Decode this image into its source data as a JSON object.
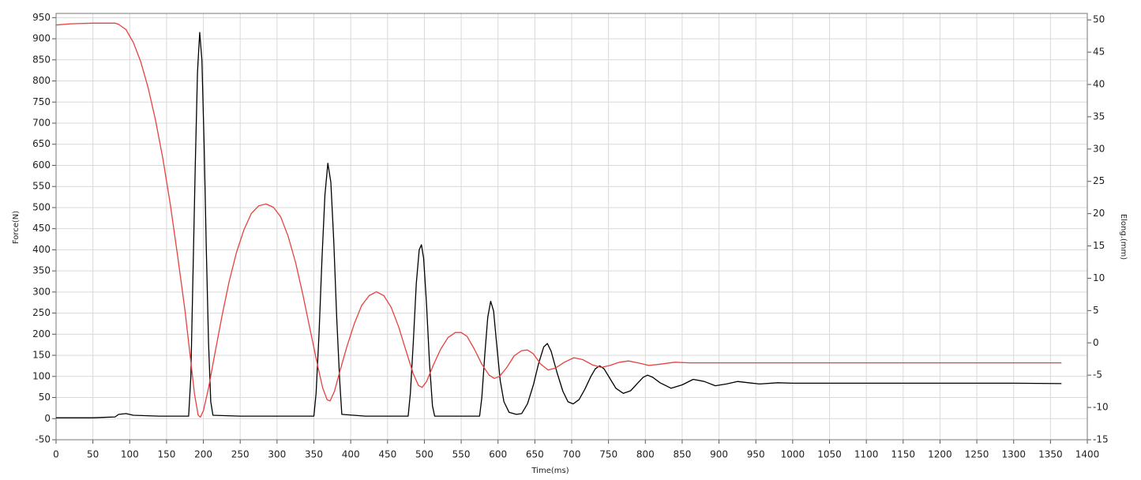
{
  "chart_data": {
    "type": "line",
    "xlabel": "Time(ms)",
    "ylabel": "Force(N)",
    "y2label": "Elong.(mm)",
    "xlim": [
      0,
      1400
    ],
    "xticks": [
      0,
      50,
      100,
      150,
      200,
      250,
      300,
      350,
      400,
      450,
      500,
      550,
      600,
      650,
      700,
      750,
      800,
      850,
      900,
      950,
      1000,
      1050,
      1100,
      1150,
      1200,
      1250,
      1300,
      1350,
      1400
    ],
    "ylim": [
      -50,
      960
    ],
    "yticks": [
      -50,
      0,
      50,
      100,
      150,
      200,
      250,
      300,
      350,
      400,
      450,
      500,
      550,
      600,
      650,
      700,
      750,
      800,
      850,
      900,
      950
    ],
    "y2lim": [
      -15,
      51
    ],
    "y2ticks": [
      -15,
      -10,
      -5,
      0,
      5,
      10,
      15,
      20,
      25,
      30,
      35,
      40,
      45,
      50
    ],
    "grid": true,
    "series": [
      {
        "color": "#000000",
        "axis": "y",
        "x": [
          0,
          50,
          80,
          85,
          95,
          105,
          140,
          180,
          183,
          186,
          189,
          192,
          195,
          198,
          201,
          204,
          207,
          210,
          213,
          250,
          300,
          350,
          353,
          357,
          361,
          365,
          369,
          373,
          377,
          381,
          385,
          388,
          420,
          478,
          481,
          485,
          489,
          493,
          496,
          499,
          503,
          507,
          511,
          514,
          575,
          578,
          582,
          586,
          590,
          594,
          598,
          603,
          608,
          615,
          625,
          632,
          640,
          648,
          655,
          662,
          667,
          672,
          680,
          688,
          695,
          702,
          710,
          718,
          726,
          732,
          738,
          744,
          752,
          760,
          770,
          780,
          790,
          797,
          803,
          810,
          820,
          835,
          850,
          865,
          880,
          895,
          910,
          925,
          940,
          955,
          980,
          1000,
          1100,
          1200,
          1300,
          1365
        ],
        "values": [
          2,
          2,
          4,
          10,
          12,
          8,
          6,
          6,
          100,
          350,
          600,
          820,
          915,
          850,
          650,
          400,
          180,
          40,
          8,
          6,
          6,
          6,
          60,
          200,
          380,
          530,
          605,
          560,
          420,
          240,
          90,
          10,
          6,
          6,
          60,
          180,
          320,
          400,
          412,
          380,
          270,
          130,
          30,
          6,
          6,
          50,
          150,
          240,
          278,
          255,
          180,
          90,
          40,
          15,
          10,
          12,
          35,
          80,
          130,
          170,
          178,
          160,
          110,
          65,
          40,
          35,
          45,
          70,
          100,
          118,
          125,
          118,
          95,
          72,
          60,
          66,
          85,
          98,
          103,
          98,
          85,
          72,
          80,
          93,
          88,
          78,
          82,
          88,
          85,
          82,
          85,
          84,
          84,
          84,
          84,
          83
        ]
      },
      {
        "color": "#e8413c",
        "axis": "y2",
        "x": [
          0,
          20,
          50,
          80,
          85,
          95,
          105,
          115,
          125,
          135,
          145,
          155,
          165,
          175,
          182,
          188,
          193,
          196,
          200,
          207,
          215,
          225,
          235,
          245,
          255,
          265,
          275,
          285,
          295,
          305,
          315,
          325,
          335,
          345,
          355,
          362,
          368,
          372,
          378,
          385,
          395,
          405,
          415,
          425,
          435,
          445,
          455,
          465,
          475,
          485,
          492,
          497,
          503,
          512,
          522,
          532,
          542,
          550,
          558,
          568,
          578,
          588,
          595,
          602,
          612,
          622,
          632,
          640,
          648,
          658,
          668,
          678,
          690,
          703,
          715,
          728,
          740,
          752,
          765,
          777,
          790,
          805,
          820,
          840,
          860,
          900,
          950,
          1000,
          1100,
          1200,
          1300,
          1365
        ],
        "values": [
          49.2,
          49.4,
          49.5,
          49.5,
          49.3,
          48.5,
          46.5,
          43.5,
          39.5,
          34.5,
          28.5,
          21.5,
          13.5,
          5,
          -2,
          -8,
          -11.2,
          -11.5,
          -10.5,
          -7,
          -2,
          4,
          9.5,
          14,
          17.5,
          20,
          21.2,
          21.5,
          21,
          19.5,
          16.5,
          12.5,
          7.5,
          2,
          -3.5,
          -7,
          -8.8,
          -9,
          -7.5,
          -4.5,
          -0.5,
          3,
          5.8,
          7.3,
          7.9,
          7.3,
          5.5,
          2.5,
          -1.2,
          -4.8,
          -6.6,
          -6.9,
          -6,
          -3.5,
          -1,
          0.8,
          1.6,
          1.6,
          1,
          -1,
          -3.3,
          -5,
          -5.5,
          -5.2,
          -3.8,
          -2,
          -1.2,
          -1.1,
          -1.7,
          -3.3,
          -4.2,
          -3.9,
          -3,
          -2.3,
          -2.6,
          -3.4,
          -3.8,
          -3.5,
          -3,
          -2.8,
          -3.1,
          -3.5,
          -3.3,
          -3,
          -3.1,
          -3.1,
          -3.1,
          -3.1,
          -3.1,
          -3.1,
          -3.1,
          -3.1
        ]
      }
    ]
  }
}
